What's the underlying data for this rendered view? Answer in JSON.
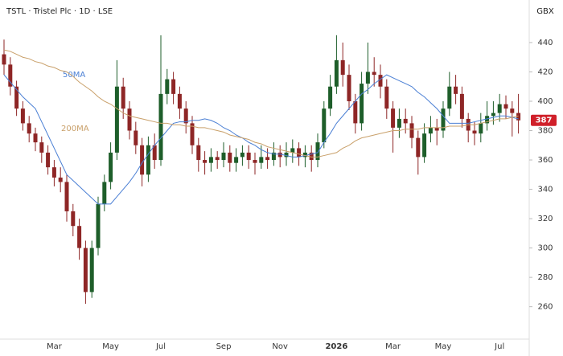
{
  "chart_data": {
    "type": "candlestick",
    "title": "TSTL · Tristel Plc · 1D · LSE",
    "ylabel": "GBX",
    "categories": [
      null,
      null,
      null,
      null,
      null,
      null,
      null,
      null,
      "Mar",
      null,
      null,
      null,
      null,
      null,
      null,
      null,
      null,
      "May",
      null,
      null,
      null,
      null,
      null,
      null,
      null,
      "Jul",
      null,
      null,
      null,
      null,
      null,
      null,
      null,
      null,
      null,
      "Sep",
      null,
      null,
      null,
      null,
      null,
      null,
      null,
      null,
      "Nov",
      null,
      null,
      null,
      null,
      null,
      null,
      null,
      null,
      "2026",
      null,
      null,
      null,
      null,
      null,
      null,
      null,
      null,
      "Mar",
      null,
      null,
      null,
      null,
      null,
      null,
      null,
      "May",
      null,
      null,
      null,
      null,
      null,
      null,
      null,
      null,
      "Jul",
      null,
      null,
      null
    ],
    "open": [
      432,
      425,
      410,
      395,
      385,
      378,
      372,
      365,
      355,
      348,
      345,
      325,
      315,
      300,
      270,
      300,
      330,
      345,
      365,
      410,
      395,
      380,
      370,
      350,
      370,
      360,
      405,
      415,
      405,
      395,
      385,
      370,
      360,
      358,
      362,
      360,
      365,
      358,
      362,
      365,
      360,
      358,
      362,
      360,
      365,
      362,
      365,
      368,
      362,
      365,
      360,
      372,
      395,
      410,
      428,
      418,
      400,
      385,
      412,
      420,
      418,
      410,
      395,
      382,
      388,
      385,
      375,
      362,
      378,
      382,
      380,
      395,
      410,
      405,
      388,
      380,
      378,
      385,
      390,
      392,
      398,
      395,
      392
    ],
    "high": [
      442,
      430,
      414,
      400,
      390,
      382,
      376,
      370,
      360,
      355,
      350,
      330,
      320,
      305,
      305,
      335,
      350,
      372,
      428,
      416,
      400,
      386,
      375,
      376,
      378,
      445,
      422,
      420,
      410,
      400,
      390,
      375,
      366,
      368,
      366,
      372,
      370,
      368,
      370,
      370,
      365,
      370,
      368,
      372,
      370,
      372,
      374,
      372,
      370,
      370,
      378,
      400,
      418,
      445,
      440,
      425,
      405,
      420,
      440,
      430,
      425,
      415,
      400,
      395,
      395,
      390,
      380,
      385,
      390,
      388,
      400,
      420,
      418,
      410,
      392,
      386,
      392,
      400,
      400,
      405,
      404,
      400,
      405
    ],
    "low": [
      418,
      404,
      390,
      380,
      372,
      366,
      358,
      350,
      342,
      338,
      318,
      308,
      292,
      262,
      266,
      295,
      325,
      340,
      360,
      388,
      374,
      364,
      342,
      345,
      354,
      356,
      398,
      398,
      388,
      378,
      364,
      352,
      350,
      352,
      354,
      355,
      352,
      352,
      356,
      354,
      350,
      354,
      354,
      356,
      355,
      356,
      358,
      356,
      355,
      352,
      355,
      368,
      390,
      405,
      410,
      394,
      378,
      380,
      405,
      410,
      402,
      388,
      365,
      375,
      378,
      368,
      350,
      358,
      372,
      370,
      375,
      390,
      398,
      382,
      372,
      370,
      372,
      380,
      384,
      386,
      388,
      376,
      378
    ],
    "close": [
      425,
      410,
      395,
      385,
      378,
      372,
      365,
      355,
      348,
      345,
      325,
      315,
      300,
      270,
      300,
      330,
      345,
      365,
      410,
      395,
      380,
      370,
      350,
      370,
      360,
      405,
      415,
      405,
      395,
      385,
      370,
      360,
      358,
      362,
      360,
      365,
      358,
      362,
      365,
      360,
      358,
      362,
      360,
      365,
      362,
      365,
      368,
      362,
      365,
      360,
      372,
      395,
      410,
      428,
      418,
      400,
      385,
      412,
      420,
      418,
      410,
      395,
      382,
      388,
      385,
      375,
      362,
      378,
      382,
      380,
      395,
      410,
      405,
      388,
      380,
      378,
      385,
      390,
      392,
      398,
      395,
      392,
      387
    ],
    "up_color": "#1e5e2a",
    "down_color": "#8e2626",
    "series": [
      {
        "name": "50MA",
        "color": "#4a7fd4",
        "values": [
          418,
          413,
          408,
          403,
          399,
          395,
          386,
          377,
          368,
          359,
          350,
          346,
          342,
          338,
          334,
          330,
          330,
          330,
          335,
          340,
          345,
          351,
          358,
          364,
          370,
          375,
          380,
          385,
          386,
          386,
          387,
          387,
          388,
          387,
          385,
          382,
          380,
          377,
          375,
          372,
          370,
          367,
          365,
          364,
          364,
          363,
          362,
          362,
          363,
          364,
          365,
          372,
          378,
          385,
          390,
          395,
          400,
          405,
          408,
          412,
          415,
          418,
          416,
          414,
          412,
          410,
          406,
          403,
          399,
          395,
          390,
          385,
          385,
          385,
          385,
          386,
          387,
          388,
          389,
          390,
          390,
          389,
          388
        ]
      },
      {
        "name": "200MA",
        "color": "#c9a06a",
        "values": [
          435,
          434,
          432,
          430,
          429,
          427,
          426,
          424,
          423,
          421,
          420,
          417,
          413,
          410,
          407,
          403,
          400,
          398,
          395,
          392,
          390,
          389,
          388,
          387,
          386,
          385,
          385,
          384,
          384,
          383,
          383,
          382,
          382,
          381,
          380,
          379,
          377,
          376,
          375,
          374,
          372,
          371,
          369,
          368,
          367,
          366,
          365,
          364,
          363,
          362,
          362,
          363,
          364,
          365,
          368,
          370,
          373,
          375,
          376,
          377,
          378,
          379,
          380,
          380,
          381,
          381,
          381,
          382,
          382,
          382,
          382,
          383,
          383,
          383,
          384,
          384,
          385,
          386,
          387,
          388,
          388,
          389,
          390
        ]
      }
    ],
    "ylim": [
      239,
      469
    ],
    "yticks": [
      260,
      280,
      300,
      320,
      340,
      360,
      380,
      400,
      420,
      440
    ],
    "last_color": "#d0202a"
  }
}
